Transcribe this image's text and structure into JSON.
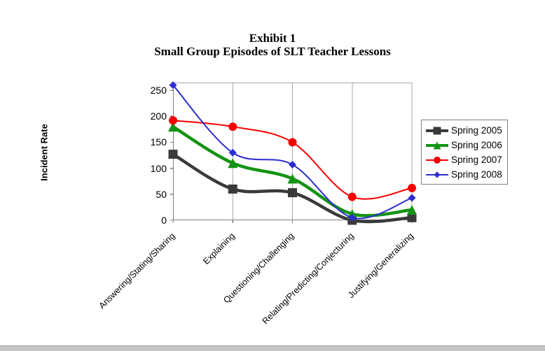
{
  "chart_data": {
    "type": "line",
    "line_style": "smoothed",
    "title": "Exhibit 1",
    "subtitle": "Small Group Episodes of SLT Teacher Lessons",
    "ylabel": "Incident Rate",
    "xlabel": "",
    "categories": [
      "Answering/Stating/Sharing",
      "Explaining",
      "Questioning/Challenging",
      "Relating/Predicting/Conjecturing",
      "Justifying/Generalizing"
    ],
    "series": [
      {
        "name": "Spring 2005",
        "marker": "square",
        "color": "#3a3a3a",
        "line_width": 4.5,
        "values": [
          127,
          60,
          53,
          0,
          5
        ]
      },
      {
        "name": "Spring 2006",
        "marker": "triangle",
        "color": "#149414",
        "line_width": 4.5,
        "values": [
          180,
          110,
          80,
          12,
          20
        ]
      },
      {
        "name": "Spring 2007",
        "marker": "circle",
        "color": "#f40000",
        "line_width": 2,
        "values": [
          192,
          180,
          150,
          45,
          62
        ]
      },
      {
        "name": "Spring 2008",
        "marker": "diamond",
        "color": "#2d2dd0",
        "line_width": 2,
        "values": [
          260,
          130,
          107,
          5,
          43
        ]
      }
    ],
    "y_ticks": [
      0,
      50,
      100,
      150,
      200,
      250
    ],
    "ylim": [
      0,
      265
    ],
    "grid": "vertical-category-gridlines-only",
    "legend_position": "right",
    "axis_color": "#7f7f7f",
    "gridline_color": "#a9a9a9"
  },
  "window": {
    "bottom_edge_bar": ""
  }
}
